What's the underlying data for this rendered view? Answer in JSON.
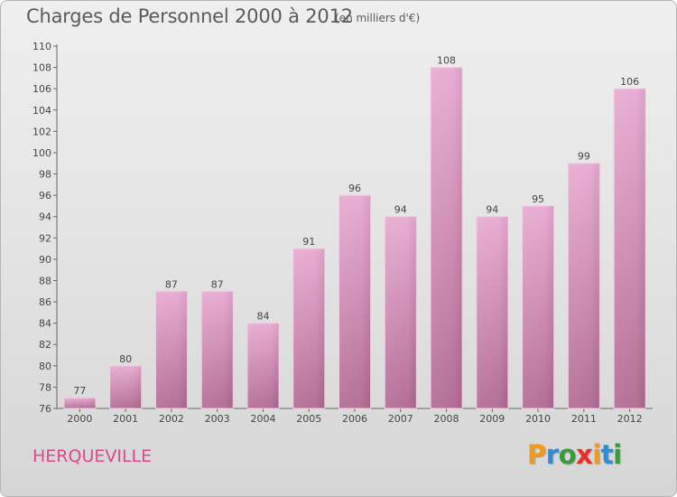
{
  "header": {
    "title": "Charges de Personnel 2000 à 2012",
    "unit": "(en milliers d'€)"
  },
  "footer": {
    "commune": "HERQUEVILLE",
    "logo_text": "Proxiti",
    "logo_letters": [
      {
        "ch": "P",
        "color": "#f29a1c"
      },
      {
        "ch": "r",
        "color": "#2a8fd4"
      },
      {
        "ch": "o",
        "color": "#3a9a3c"
      },
      {
        "ch": "x",
        "color": "#e8302a"
      },
      {
        "ch": "i",
        "color": "#f29a1c"
      },
      {
        "ch": "t",
        "color": "#2a8fd4"
      },
      {
        "ch": "i",
        "color": "#3a9a3c"
      }
    ]
  },
  "colors": {
    "bar_top": "#e7a9d0",
    "bar_bottom": "#b0688f",
    "accent": "#e0488c"
  },
  "chart_data": {
    "type": "bar",
    "title": "Charges de Personnel 2000 à 2012",
    "subtitle": "(en milliers d'€)",
    "categories": [
      "2000",
      "2001",
      "2002",
      "2003",
      "2004",
      "2005",
      "2006",
      "2007",
      "2008",
      "2009",
      "2010",
      "2011",
      "2012"
    ],
    "values": [
      77,
      80,
      87,
      87,
      84,
      91,
      96,
      94,
      108,
      94,
      95,
      99,
      106
    ],
    "ylim": [
      76,
      110
    ],
    "yticks": [
      76,
      78,
      80,
      82,
      84,
      86,
      88,
      90,
      92,
      94,
      96,
      98,
      100,
      102,
      104,
      106,
      108,
      110
    ],
    "grid": false,
    "xlabel": "",
    "ylabel": ""
  }
}
